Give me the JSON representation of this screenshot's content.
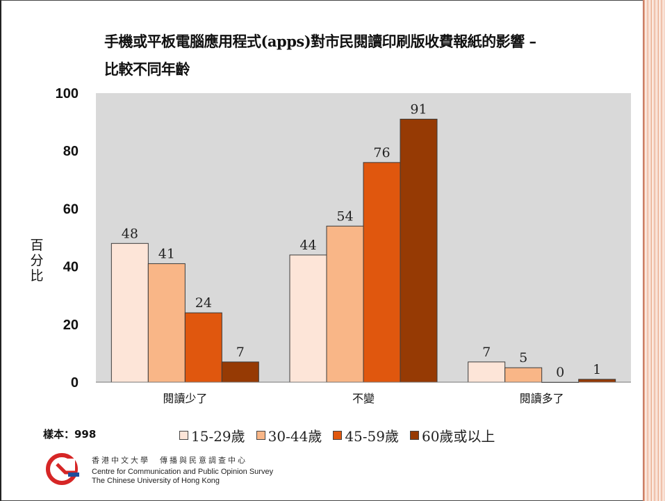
{
  "title": {
    "line1": "手機或平板電腦應用程式(apps)對市民閱讀印刷版收費報紙的影響 –",
    "line2": "比較不同年齡"
  },
  "y_axis_label": "百分比",
  "sample": "樣本：998",
  "org": {
    "chinese": "香港中文大學　傳播與民意調查中心",
    "english1": "Centre for Communication and Public Opinion Survey",
    "english2": "The Chinese University of Hong Kong"
  },
  "colors": {
    "plot_bg": "#d9d9d9",
    "s1": "#fde5d8",
    "s2": "#f9b687",
    "s3": "#e0570e",
    "s4": "#963a04"
  },
  "chart_data": {
    "type": "bar",
    "categories": [
      "閱讀少了",
      "不變",
      "閱讀多了"
    ],
    "series": [
      {
        "name": "15-29歲",
        "values": [
          48,
          44,
          7
        ]
      },
      {
        "name": "30-44歲",
        "values": [
          41,
          54,
          5
        ]
      },
      {
        "name": "45-59歲",
        "values": [
          24,
          76,
          0
        ]
      },
      {
        "name": "60歲或以上",
        "values": [
          7,
          91,
          1
        ]
      }
    ],
    "yticks": [
      "0",
      "20",
      "40",
      "60",
      "80",
      "100"
    ],
    "ylim": [
      0,
      100
    ],
    "ylabel": "百分比",
    "legend_position": "bottom",
    "grid": false
  }
}
